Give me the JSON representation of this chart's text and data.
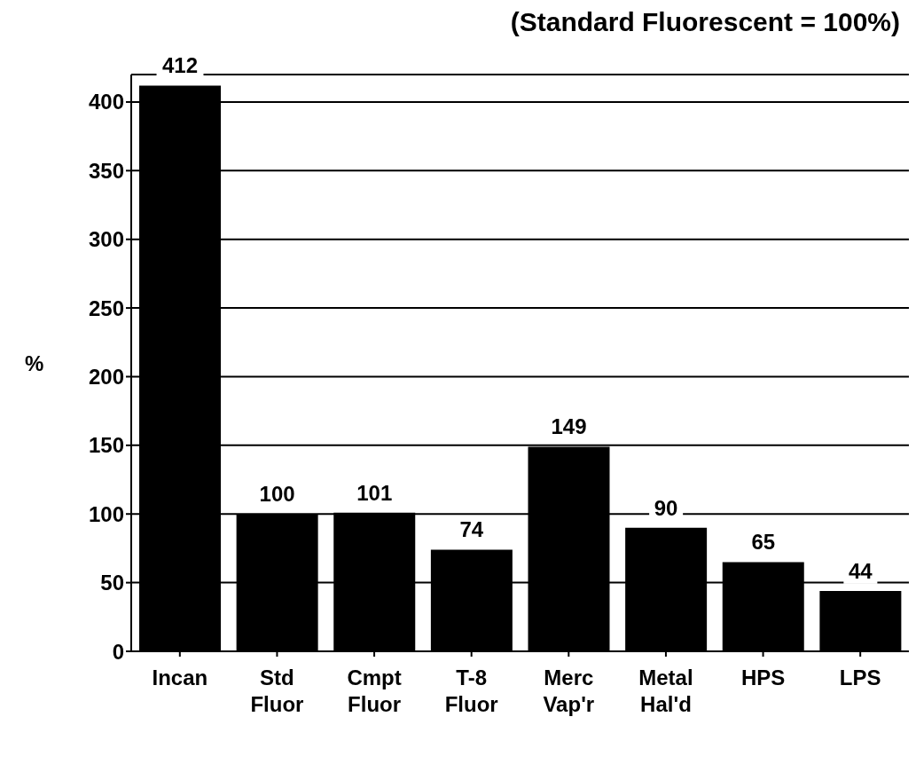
{
  "chart_data": {
    "type": "bar",
    "subtitle": "(Standard Fluorescent = 100%)",
    "ylabel": "%",
    "categories": [
      "Incan",
      "Std\nFluor",
      "Cmpt\nFluor",
      "T-8\nFluor",
      "Merc\nVap'r",
      "Metal\nHal'd",
      "HPS",
      "LPS"
    ],
    "values": [
      412,
      100,
      101,
      74,
      149,
      90,
      65,
      44
    ],
    "color": "#000000",
    "ylim": [
      0,
      420
    ],
    "yticks": [
      0,
      50,
      100,
      150,
      200,
      250,
      300,
      350,
      400
    ],
    "grid": "y",
    "data_labels": true
  }
}
